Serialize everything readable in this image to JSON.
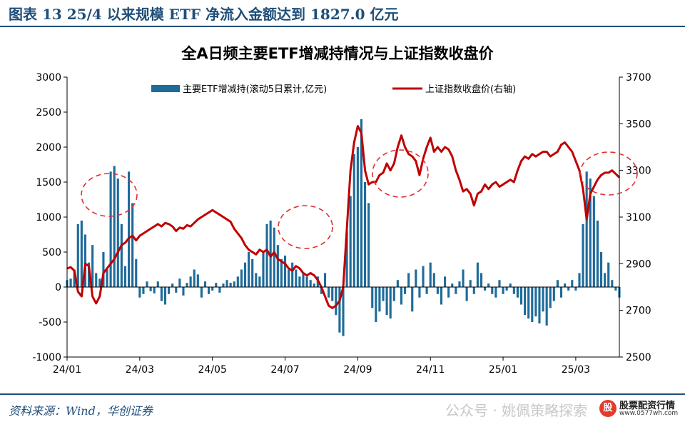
{
  "figure": {
    "title": "图表 13   25/4 以来规模 ETF 净流入金额达到 1827.0 亿元",
    "source": "资料来源：Wind，华创证券",
    "watermark": "公众号 · 姚佩策略探索",
    "badge_name": "股票配资行情",
    "badge_url": "www.0577wh.com",
    "colors": {
      "bars": "#1f6b9a",
      "line": "#c00000",
      "circles": "#e03030",
      "frame": "#1f4e79"
    }
  },
  "chart_data": {
    "type": "bar",
    "combo": "bar + line (dual axis)",
    "title": "全A日频主要ETF增减持情况与上证指数收盘价",
    "legend_position": "top",
    "grid": false,
    "x_tick_labels": [
      "24/01",
      "24/03",
      "24/05",
      "24/07",
      "24/09",
      "24/11",
      "25/01",
      "25/03"
    ],
    "y_left": {
      "ylim": [
        -1000,
        3000
      ],
      "ticks": [
        3000,
        2500,
        2000,
        1500,
        1000,
        500,
        0,
        -500,
        -1000
      ]
    },
    "y_right": {
      "ylim": [
        2500,
        3700
      ],
      "ticks": [
        3700,
        3500,
        3300,
        3100,
        2900,
        2700,
        2500
      ]
    },
    "series": [
      {
        "name": "主要ETF增减持(滚动5日累计,亿元)",
        "type": "bar",
        "axis": "left",
        "points": [
          [
            0.0,
            100
          ],
          [
            0.1,
            120
          ],
          [
            0.2,
            250
          ],
          [
            0.3,
            900
          ],
          [
            0.4,
            950
          ],
          [
            0.5,
            750
          ],
          [
            0.6,
            350
          ],
          [
            0.7,
            600
          ],
          [
            0.8,
            200
          ],
          [
            0.9,
            120
          ],
          [
            1.0,
            500
          ],
          [
            1.1,
            250
          ],
          [
            1.2,
            1650
          ],
          [
            1.3,
            1730
          ],
          [
            1.4,
            1550
          ],
          [
            1.5,
            900
          ],
          [
            1.6,
            300
          ],
          [
            1.7,
            1650
          ],
          [
            1.8,
            1200
          ],
          [
            1.9,
            400
          ],
          [
            2.0,
            -150
          ],
          [
            2.1,
            -100
          ],
          [
            2.2,
            80
          ],
          [
            2.3,
            -60
          ],
          [
            2.4,
            -90
          ],
          [
            2.5,
            80
          ],
          [
            2.6,
            -200
          ],
          [
            2.7,
            -250
          ],
          [
            2.8,
            -100
          ],
          [
            2.9,
            50
          ],
          [
            3.0,
            -80
          ],
          [
            3.1,
            120
          ],
          [
            3.2,
            -120
          ],
          [
            3.3,
            60
          ],
          [
            3.4,
            150
          ],
          [
            3.5,
            250
          ],
          [
            3.6,
            180
          ],
          [
            3.7,
            -150
          ],
          [
            3.8,
            80
          ],
          [
            3.9,
            -100
          ],
          [
            4.0,
            -50
          ],
          [
            4.1,
            60
          ],
          [
            4.2,
            -80
          ],
          [
            4.3,
            50
          ],
          [
            4.4,
            100
          ],
          [
            4.5,
            60
          ],
          [
            4.6,
            80
          ],
          [
            4.7,
            150
          ],
          [
            4.8,
            250
          ],
          [
            4.9,
            350
          ],
          [
            5.0,
            500
          ],
          [
            5.1,
            400
          ],
          [
            5.2,
            200
          ],
          [
            5.3,
            150
          ],
          [
            5.4,
            500
          ],
          [
            5.5,
            900
          ],
          [
            5.6,
            950
          ],
          [
            5.7,
            850
          ],
          [
            5.8,
            600
          ],
          [
            5.9,
            400
          ],
          [
            6.0,
            450
          ],
          [
            6.1,
            250
          ],
          [
            6.2,
            350
          ],
          [
            6.3,
            250
          ],
          [
            6.4,
            150
          ],
          [
            6.5,
            200
          ],
          [
            6.6,
            150
          ],
          [
            6.7,
            100
          ],
          [
            6.8,
            50
          ],
          [
            6.9,
            150
          ],
          [
            7.0,
            -100
          ],
          [
            7.1,
            200
          ],
          [
            7.2,
            -150
          ],
          [
            7.3,
            -200
          ],
          [
            7.4,
            -400
          ],
          [
            7.5,
            -650
          ],
          [
            7.6,
            -700
          ],
          [
            7.7,
            800
          ],
          [
            7.8,
            1300
          ],
          [
            7.9,
            1900
          ],
          [
            8.0,
            2000
          ],
          [
            8.1,
            2400
          ],
          [
            8.2,
            1500
          ],
          [
            8.3,
            1200
          ],
          [
            8.4,
            -300
          ],
          [
            8.5,
            -500
          ],
          [
            8.6,
            -350
          ],
          [
            8.7,
            -200
          ],
          [
            8.8,
            -400
          ],
          [
            8.9,
            -450
          ],
          [
            9.0,
            -200
          ],
          [
            9.1,
            100
          ],
          [
            9.2,
            -250
          ],
          [
            9.3,
            -100
          ],
          [
            9.4,
            200
          ],
          [
            9.5,
            -350
          ],
          [
            9.6,
            250
          ],
          [
            9.7,
            -150
          ],
          [
            9.8,
            300
          ],
          [
            9.9,
            -100
          ],
          [
            10.0,
            350
          ],
          [
            10.1,
            200
          ],
          [
            10.2,
            -100
          ],
          [
            10.3,
            -250
          ],
          [
            10.4,
            150
          ],
          [
            10.5,
            -150
          ],
          [
            10.6,
            50
          ],
          [
            10.7,
            -100
          ],
          [
            10.8,
            80
          ],
          [
            10.9,
            250
          ],
          [
            11.0,
            -200
          ],
          [
            11.1,
            100
          ],
          [
            11.2,
            -100
          ],
          [
            11.3,
            350
          ],
          [
            11.4,
            200
          ],
          [
            11.5,
            -50
          ],
          [
            11.6,
            50
          ],
          [
            11.7,
            -100
          ],
          [
            11.8,
            -150
          ],
          [
            11.9,
            100
          ],
          [
            12.0,
            -100
          ],
          [
            12.1,
            -50
          ],
          [
            12.2,
            50
          ],
          [
            12.3,
            -100
          ],
          [
            12.4,
            -150
          ],
          [
            12.5,
            -250
          ],
          [
            12.6,
            -400
          ],
          [
            12.7,
            -450
          ],
          [
            12.8,
            -500
          ],
          [
            12.9,
            -420
          ],
          [
            13.0,
            -520
          ],
          [
            13.1,
            -350
          ],
          [
            13.2,
            -550
          ],
          [
            13.3,
            -300
          ],
          [
            13.4,
            -200
          ],
          [
            13.5,
            100
          ],
          [
            13.6,
            -150
          ],
          [
            13.7,
            50
          ],
          [
            13.8,
            -50
          ],
          [
            13.9,
            100
          ],
          [
            14.0,
            -50
          ],
          [
            14.1,
            200
          ],
          [
            14.2,
            900
          ],
          [
            14.3,
            1650
          ],
          [
            14.4,
            1550
          ],
          [
            14.5,
            1300
          ],
          [
            14.6,
            950
          ],
          [
            14.7,
            500
          ],
          [
            14.8,
            200
          ],
          [
            14.9,
            350
          ],
          [
            15.0,
            100
          ],
          [
            15.1,
            -50
          ],
          [
            15.2,
            -150
          ]
        ]
      },
      {
        "name": "上证指数收盘价(右轴)",
        "type": "line",
        "axis": "right",
        "points": [
          [
            0.0,
            2880
          ],
          [
            0.1,
            2885
          ],
          [
            0.2,
            2870
          ],
          [
            0.3,
            2780
          ],
          [
            0.4,
            2760
          ],
          [
            0.5,
            2900
          ],
          [
            0.6,
            2890
          ],
          [
            0.7,
            2760
          ],
          [
            0.8,
            2730
          ],
          [
            0.9,
            2760
          ],
          [
            1.0,
            2860
          ],
          [
            1.1,
            2880
          ],
          [
            1.2,
            2900
          ],
          [
            1.3,
            2920
          ],
          [
            1.4,
            2950
          ],
          [
            1.5,
            2980
          ],
          [
            1.6,
            2990
          ],
          [
            1.7,
            3010
          ],
          [
            1.8,
            3020
          ],
          [
            1.9,
            3000
          ],
          [
            2.0,
            3020
          ],
          [
            2.1,
            3030
          ],
          [
            2.2,
            3040
          ],
          [
            2.3,
            3050
          ],
          [
            2.4,
            3060
          ],
          [
            2.5,
            3070
          ],
          [
            2.6,
            3060
          ],
          [
            2.7,
            3075
          ],
          [
            2.8,
            3070
          ],
          [
            2.9,
            3060
          ],
          [
            3.0,
            3040
          ],
          [
            3.1,
            3055
          ],
          [
            3.2,
            3050
          ],
          [
            3.3,
            3065
          ],
          [
            3.4,
            3060
          ],
          [
            3.5,
            3075
          ],
          [
            3.6,
            3090
          ],
          [
            3.7,
            3100
          ],
          [
            3.8,
            3110
          ],
          [
            3.9,
            3120
          ],
          [
            4.0,
            3130
          ],
          [
            4.1,
            3120
          ],
          [
            4.2,
            3110
          ],
          [
            4.3,
            3100
          ],
          [
            4.4,
            3090
          ],
          [
            4.5,
            3080
          ],
          [
            4.6,
            3050
          ],
          [
            4.7,
            3030
          ],
          [
            4.8,
            3010
          ],
          [
            4.9,
            2980
          ],
          [
            5.0,
            2960
          ],
          [
            5.1,
            2950
          ],
          [
            5.2,
            2940
          ],
          [
            5.3,
            2960
          ],
          [
            5.4,
            2950
          ],
          [
            5.5,
            2960
          ],
          [
            5.6,
            2930
          ],
          [
            5.7,
            2950
          ],
          [
            5.8,
            2920
          ],
          [
            5.9,
            2910
          ],
          [
            6.0,
            2900
          ],
          [
            6.1,
            2880
          ],
          [
            6.2,
            2870
          ],
          [
            6.3,
            2890
          ],
          [
            6.4,
            2880
          ],
          [
            6.5,
            2860
          ],
          [
            6.6,
            2850
          ],
          [
            6.7,
            2860
          ],
          [
            6.8,
            2850
          ],
          [
            6.9,
            2830
          ],
          [
            7.0,
            2800
          ],
          [
            7.1,
            2760
          ],
          [
            7.2,
            2720
          ],
          [
            7.3,
            2710
          ],
          [
            7.4,
            2720
          ],
          [
            7.5,
            2740
          ],
          [
            7.6,
            2800
          ],
          [
            7.7,
            3050
          ],
          [
            7.8,
            3300
          ],
          [
            7.9,
            3420
          ],
          [
            8.0,
            3490
          ],
          [
            8.1,
            3460
          ],
          [
            8.2,
            3300
          ],
          [
            8.3,
            3240
          ],
          [
            8.4,
            3250
          ],
          [
            8.5,
            3250
          ],
          [
            8.6,
            3280
          ],
          [
            8.7,
            3290
          ],
          [
            8.8,
            3330
          ],
          [
            8.9,
            3300
          ],
          [
            9.0,
            3330
          ],
          [
            9.1,
            3400
          ],
          [
            9.2,
            3450
          ],
          [
            9.3,
            3400
          ],
          [
            9.4,
            3370
          ],
          [
            9.5,
            3360
          ],
          [
            9.6,
            3340
          ],
          [
            9.7,
            3280
          ],
          [
            9.8,
            3350
          ],
          [
            9.9,
            3400
          ],
          [
            10.0,
            3440
          ],
          [
            10.1,
            3380
          ],
          [
            10.2,
            3400
          ],
          [
            10.3,
            3380
          ],
          [
            10.4,
            3400
          ],
          [
            10.5,
            3390
          ],
          [
            10.6,
            3360
          ],
          [
            10.7,
            3300
          ],
          [
            10.8,
            3260
          ],
          [
            10.9,
            3210
          ],
          [
            11.0,
            3220
          ],
          [
            11.1,
            3200
          ],
          [
            11.2,
            3150
          ],
          [
            11.3,
            3200
          ],
          [
            11.4,
            3210
          ],
          [
            11.5,
            3240
          ],
          [
            11.6,
            3220
          ],
          [
            11.7,
            3240
          ],
          [
            11.8,
            3250
          ],
          [
            11.9,
            3230
          ],
          [
            12.0,
            3240
          ],
          [
            12.1,
            3250
          ],
          [
            12.2,
            3260
          ],
          [
            12.3,
            3250
          ],
          [
            12.4,
            3300
          ],
          [
            12.5,
            3340
          ],
          [
            12.6,
            3360
          ],
          [
            12.7,
            3350
          ],
          [
            12.8,
            3370
          ],
          [
            12.9,
            3360
          ],
          [
            13.0,
            3370
          ],
          [
            13.1,
            3380
          ],
          [
            13.2,
            3380
          ],
          [
            13.3,
            3360
          ],
          [
            13.4,
            3370
          ],
          [
            13.5,
            3380
          ],
          [
            13.6,
            3410
          ],
          [
            13.7,
            3420
          ],
          [
            13.8,
            3400
          ],
          [
            13.9,
            3380
          ],
          [
            14.0,
            3340
          ],
          [
            14.1,
            3300
          ],
          [
            14.2,
            3220
          ],
          [
            14.3,
            3090
          ],
          [
            14.4,
            3200
          ],
          [
            14.5,
            3230
          ],
          [
            14.6,
            3260
          ],
          [
            14.7,
            3280
          ],
          [
            14.8,
            3290
          ],
          [
            14.9,
            3290
          ],
          [
            15.0,
            3300
          ],
          [
            15.1,
            3285
          ],
          [
            15.2,
            3270
          ]
        ]
      }
    ]
  }
}
